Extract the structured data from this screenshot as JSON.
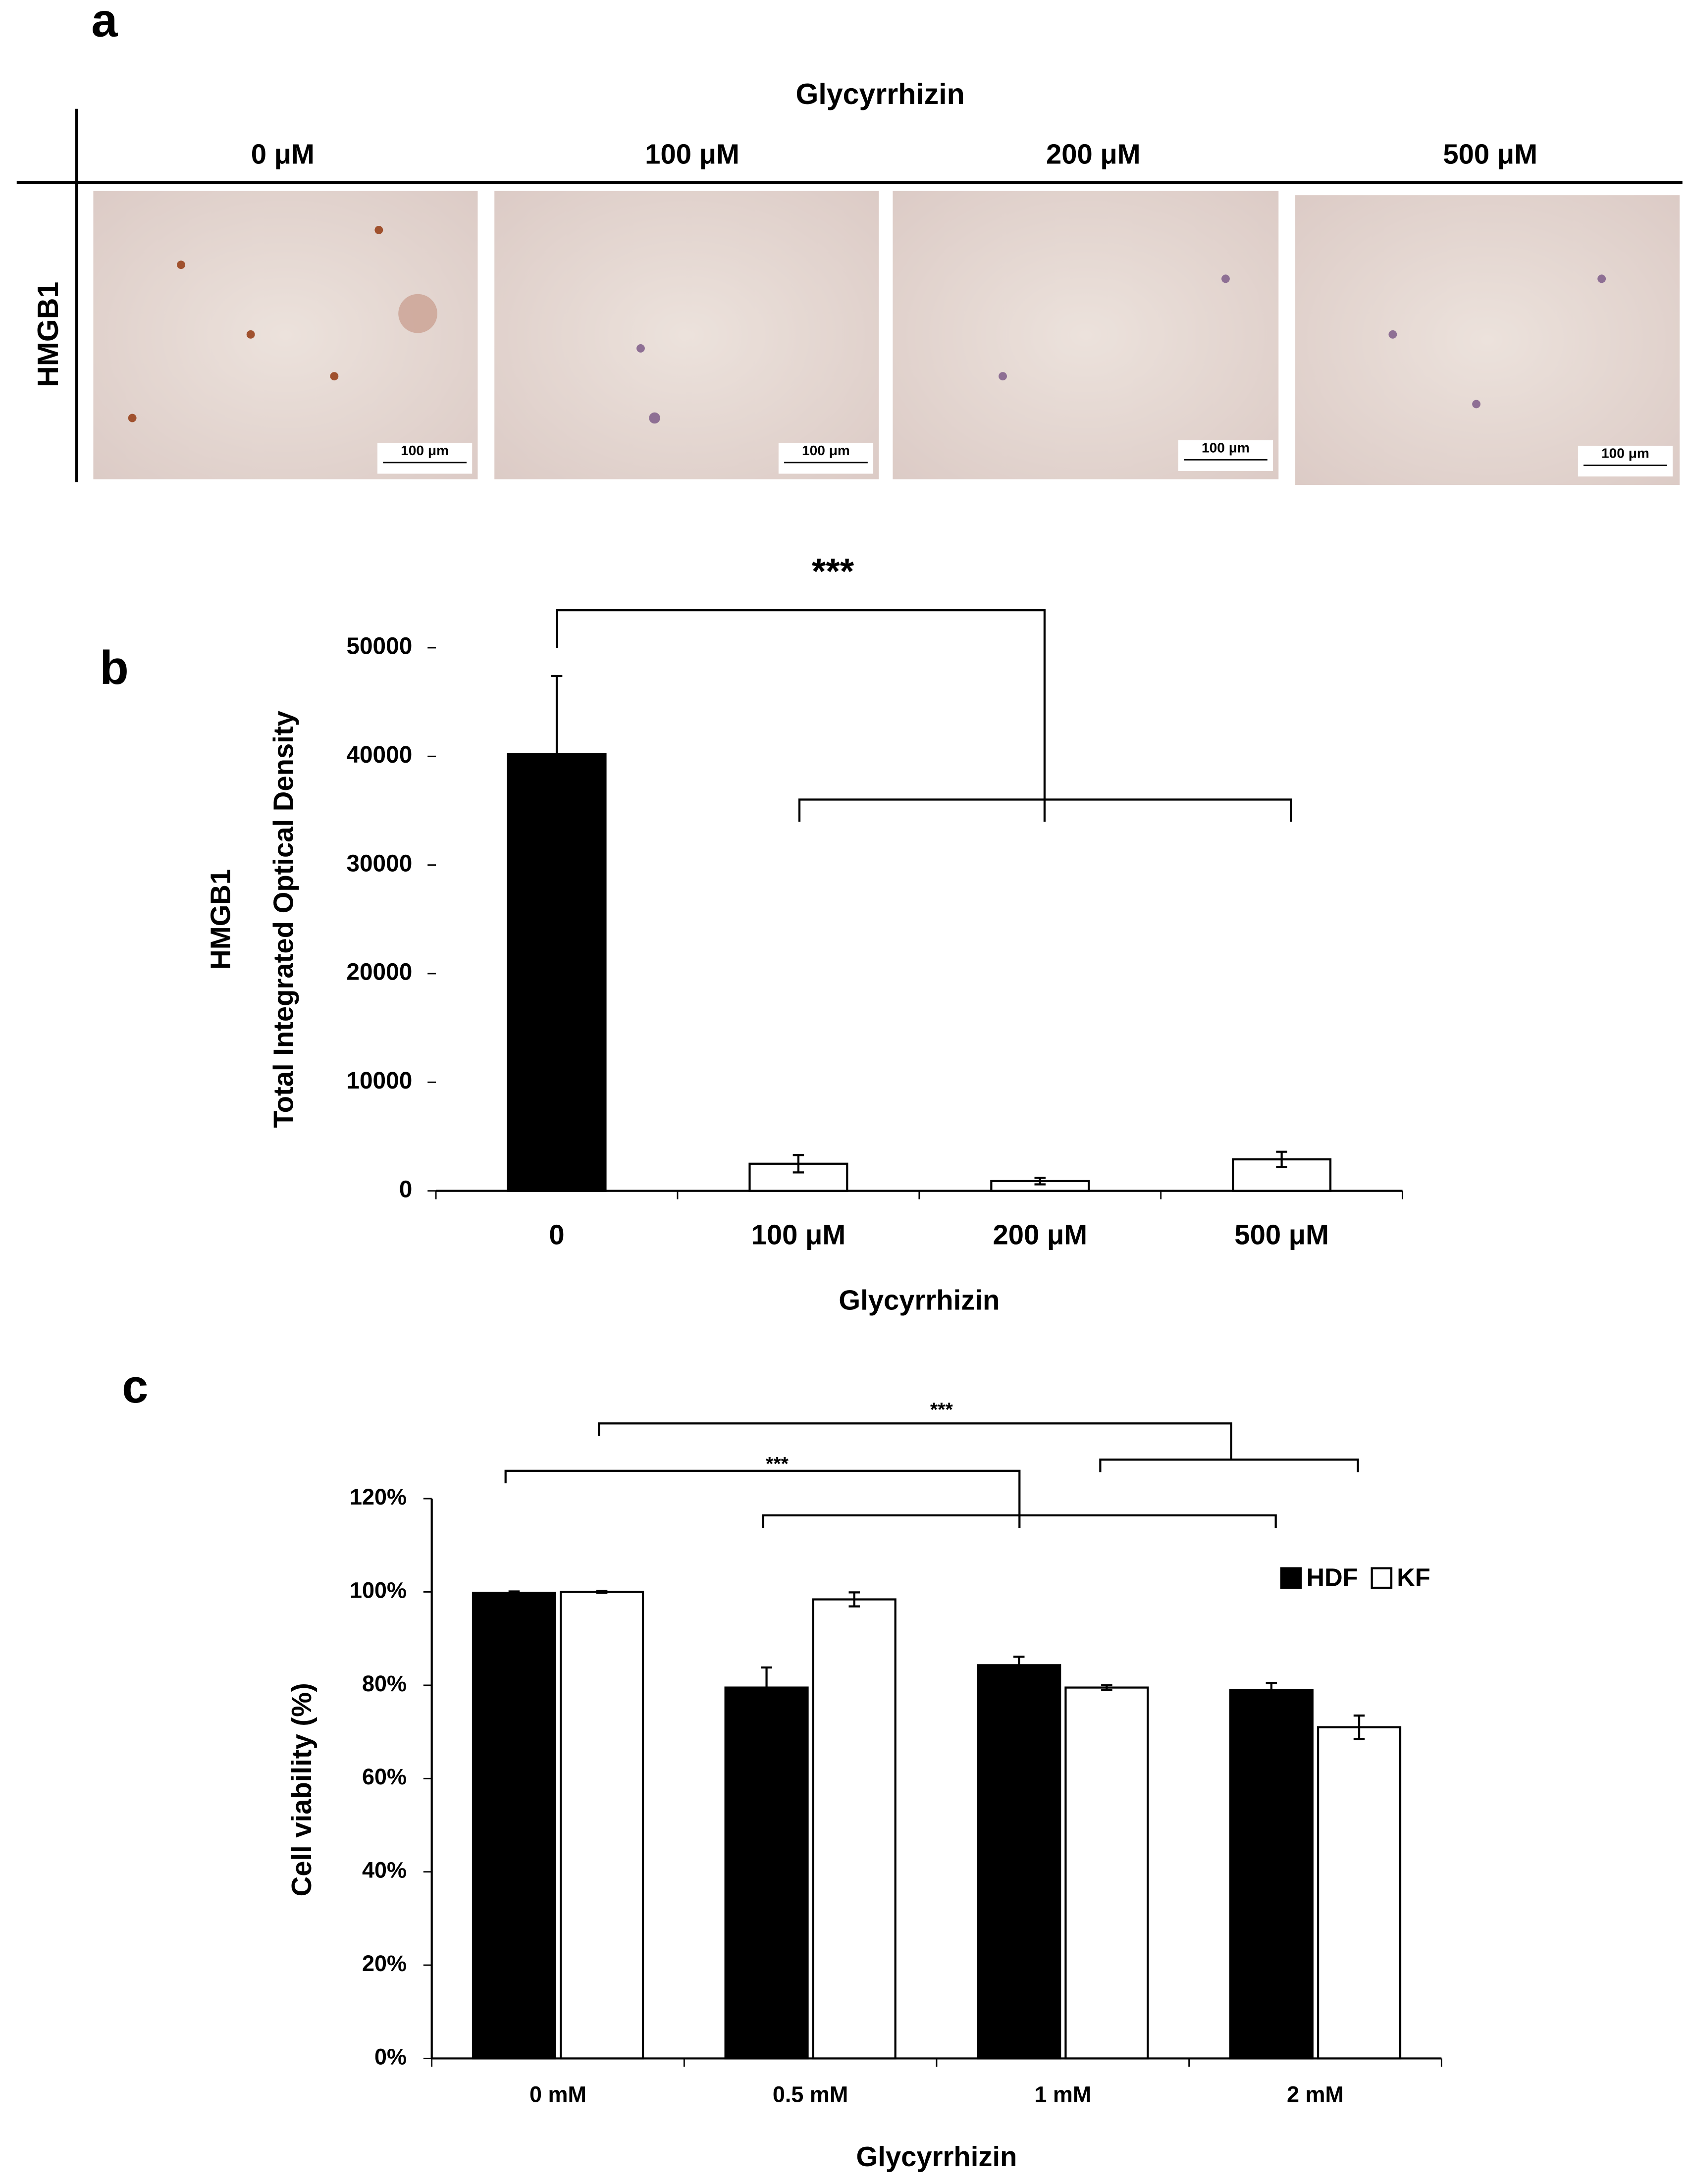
{
  "panel_a": {
    "label": "a",
    "title": "Glycyrrhizin",
    "row_label": "HMGB1",
    "columns": [
      "0 μM",
      "100 μM",
      "200 μM",
      "500 μM"
    ],
    "scale_bars": [
      "100 μm",
      "100 μm",
      "100 μm",
      "100 μm"
    ]
  },
  "chart_data": [
    {
      "type": "bar",
      "panel_label": "b",
      "y_label": [
        "HMGB1",
        "Total Integrated Optical Density"
      ],
      "x_label": "Glycyrrhizin",
      "categories": [
        "0",
        "100 μM",
        "200 μM",
        "500 μM"
      ],
      "values": [
        40200,
        2500,
        900,
        2900
      ],
      "errors": [
        7200,
        800,
        300,
        700
      ],
      "colors": [
        "#000000",
        "#ffffff",
        "#ffffff",
        "#ffffff"
      ],
      "ylim": [
        0,
        50000
      ],
      "yticks": [
        0,
        10000,
        20000,
        30000,
        40000,
        50000
      ],
      "annotations": [
        "***"
      ]
    },
    {
      "type": "bar",
      "panel_label": "c",
      "y_label": [
        "Cell viability (%)"
      ],
      "x_label": "Glycyrrhizin",
      "categories": [
        "0 mM",
        "0.5 mM",
        "1 mM",
        "2 mM"
      ],
      "series": [
        {
          "name": "HDF",
          "color": "#000000",
          "values": [
            99.8,
            79.5,
            84.3,
            79
          ],
          "errors": [
            0.3,
            4.3,
            1.8,
            1.5
          ]
        },
        {
          "name": "KF",
          "color": "#ffffff",
          "values": [
            100,
            98.4,
            79.5,
            71
          ],
          "errors": [
            0.2,
            1.5,
            0.5,
            2.5
          ]
        }
      ],
      "ylim": [
        0,
        120
      ],
      "yticks": [
        {
          "value": 0,
          "label": "0%"
        },
        {
          "value": 20,
          "label": "20%"
        },
        {
          "value": 40,
          "label": "40%"
        },
        {
          "value": 60,
          "label": "60%"
        },
        {
          "value": 80,
          "label": "80%"
        },
        {
          "value": 100,
          "label": "100%"
        },
        {
          "value": 120,
          "label": "120%"
        }
      ],
      "legend": "upper right",
      "annotations": [
        "***",
        "***"
      ]
    }
  ]
}
